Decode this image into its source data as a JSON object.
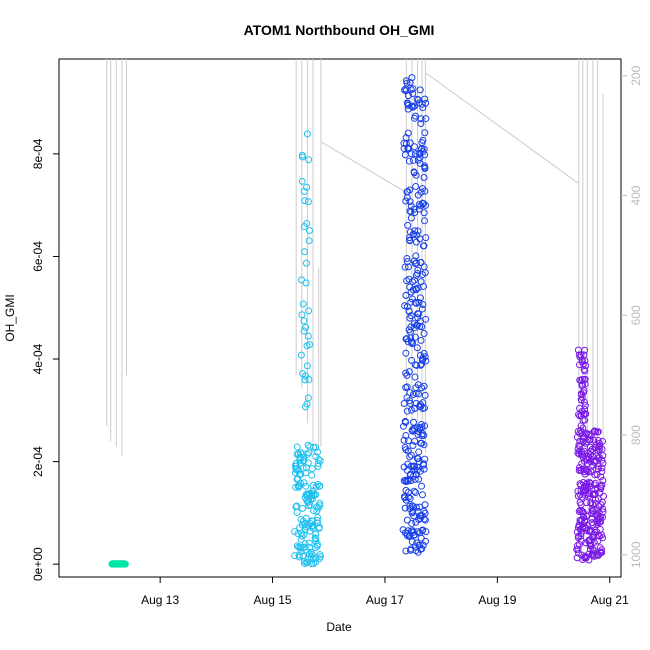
{
  "chart_data": {
    "type": "scatter",
    "title": "ATOM1 Northbound OH_GMI",
    "xlabel": "Date",
    "ylabel": "OH_GMI",
    "y_ticks": [
      "0e+00",
      "2e-04",
      "4e-04",
      "6e-04",
      "8e-04"
    ],
    "y_tick_values": [
      0,
      0.0002,
      0.0004,
      0.0006,
      0.0008
    ],
    "ylim": [
      -2.5e-05,
      0.000985
    ],
    "x_ticks": [
      "Aug 13",
      "Aug 15",
      "Aug 17",
      "Aug 19",
      "Aug 21"
    ],
    "x_tick_values": [
      13,
      15,
      17,
      19,
      21
    ],
    "xlim": [
      11.2,
      21.2
    ],
    "y2_ticks": [
      "200",
      "400",
      "600",
      "800",
      "1000"
    ],
    "y2_tick_values": [
      200,
      400,
      600,
      800,
      1000
    ],
    "y2lim": [
      1037,
      172
    ],
    "pressure_color": "#cccccc",
    "point_marker": "open-circle",
    "series": [
      {
        "color": "#00e5a8",
        "clusters": [
          {
            "x_start": 12.15,
            "x_end": 12.37,
            "y_low": 0.0,
            "y_high": 1e-06,
            "count": 45,
            "seed": 11
          }
        ]
      },
      {
        "color": "#1ec0ef",
        "clusters": [
          {
            "x_start": 15.52,
            "x_end": 15.66,
            "y_low": 0.000305,
            "y_high": 0.000865,
            "count": 35,
            "seed": 21
          },
          {
            "x_start": 15.4,
            "x_end": 15.85,
            "y_low": 0.0,
            "y_high": 0.000232,
            "count": 150,
            "seed": 22
          }
        ]
      },
      {
        "color": "#1a40e8",
        "clusters": [
          {
            "x_start": 17.35,
            "x_end": 17.73,
            "y_low": 0.00025,
            "y_high": 0.00095,
            "count": 230,
            "seed": 31
          },
          {
            "x_start": 17.33,
            "x_end": 17.72,
            "y_low": 2e-05,
            "y_high": 0.00028,
            "count": 120,
            "seed": 32
          }
        ]
      },
      {
        "color": "#7a1ae6",
        "clusters": [
          {
            "x_start": 20.45,
            "x_end": 20.58,
            "y_low": 0.00026,
            "y_high": 0.000418,
            "count": 45,
            "seed": 41
          },
          {
            "x_start": 20.42,
            "x_end": 20.88,
            "y_low": 6e-06,
            "y_high": 0.00026,
            "count": 250,
            "seed": 42
          }
        ]
      }
    ],
    "pressure_profiles": [
      {
        "x": 12.05,
        "p": [
          172,
          785
        ]
      },
      {
        "x": 12.12,
        "p": [
          172,
          810
        ]
      },
      {
        "x": 12.22,
        "p": [
          172,
          820
        ]
      },
      {
        "x": 12.32,
        "p": [
          172,
          835
        ]
      },
      {
        "x": 12.4,
        "p": [
          172,
          700
        ]
      },
      {
        "x": 15.42,
        "p": [
          172,
          700
        ]
      },
      {
        "x": 15.52,
        "p": [
          172,
          720
        ]
      },
      {
        "x": 15.62,
        "p": [
          172,
          780
        ]
      },
      {
        "x": 15.72,
        "p": [
          172,
          830
        ]
      },
      {
        "x": 15.82,
        "p": [
          520,
          825
        ]
      },
      {
        "x": 15.86,
        "p": [
          172,
          820
        ]
      },
      {
        "x": 17.38,
        "p": [
          172,
          770
        ]
      },
      {
        "x": 17.48,
        "p": [
          172,
          800
        ]
      },
      {
        "x": 17.58,
        "p": [
          172,
          815
        ]
      },
      {
        "x": 17.66,
        "p": [
          172,
          790
        ]
      },
      {
        "x": 17.72,
        "p": [
          172,
          830
        ]
      },
      {
        "x": 20.45,
        "p": [
          172,
          760
        ]
      },
      {
        "x": 20.52,
        "p": [
          172,
          790
        ]
      },
      {
        "x": 20.6,
        "p": [
          172,
          800
        ]
      },
      {
        "x": 20.7,
        "p": [
          172,
          820
        ]
      },
      {
        "x": 20.78,
        "p": [
          172,
          840
        ]
      },
      {
        "x": 20.88,
        "p": [
          230,
          835
        ]
      }
    ],
    "pressure_connectors": [
      {
        "x": [
          15.86,
          17.38
        ],
        "p": [
          310,
          395
        ]
      },
      {
        "x": [
          17.72,
          20.45
        ],
        "p": [
          195,
          380
        ]
      }
    ]
  }
}
